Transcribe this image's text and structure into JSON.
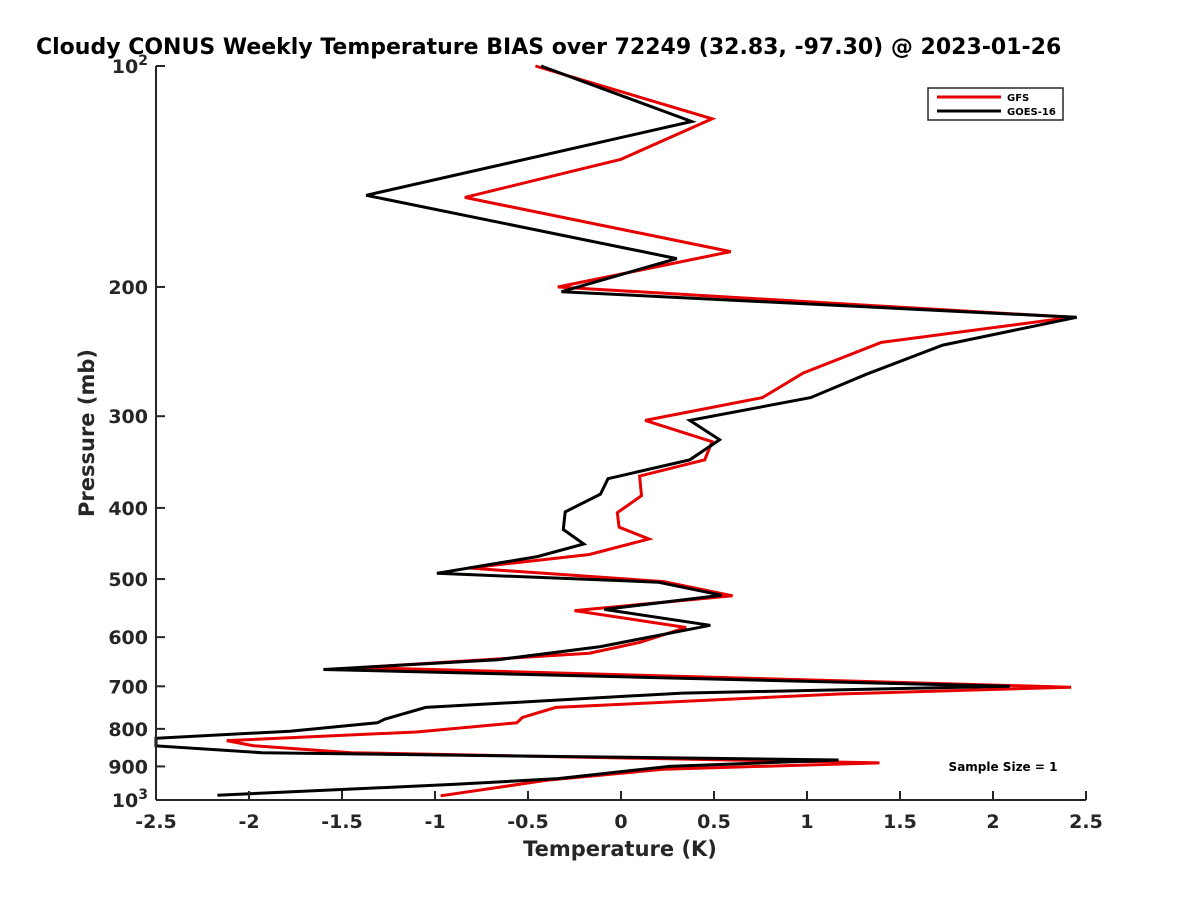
{
  "chart_data": {
    "type": "line",
    "title": "Cloudy CONUS Weekly Temperature BIAS over 72249 (32.83, -97.30) @ 2023-01-26",
    "xlabel": "Temperature (K)",
    "ylabel": "Pressure (mb)",
    "xlim": [
      -2.5,
      2.5
    ],
    "ylim": [
      100,
      1000
    ],
    "y_scale": "log",
    "y_reversed": true,
    "grid": false,
    "legend_position": "top-right",
    "x_ticks": [
      "-2.5",
      "-2",
      "-1.5",
      "-1",
      "-0.5",
      "0",
      "0.5",
      "1",
      "1.5",
      "2",
      "2.5"
    ],
    "x_tick_values": [
      -2.5,
      -2,
      -1.5,
      -1,
      -0.5,
      0,
      0.5,
      1,
      1.5,
      2,
      2.5
    ],
    "y_ticks": [
      {
        "value": 100,
        "base": "10",
        "exp": "2"
      },
      {
        "value": 200,
        "label": "200"
      },
      {
        "value": 300,
        "label": "300"
      },
      {
        "value": 400,
        "label": "400"
      },
      {
        "value": 500,
        "label": "500"
      },
      {
        "value": 600,
        "label": "600"
      },
      {
        "value": 700,
        "label": "700"
      },
      {
        "value": 800,
        "label": "800"
      },
      {
        "value": 900,
        "label": "900"
      },
      {
        "value": 1000,
        "base": "10",
        "exp": "3"
      }
    ],
    "annotation": "Sample Size = 1",
    "series": [
      {
        "name": "GFS",
        "color": "#e60000",
        "x": [
          -0.46,
          0.49,
          0.0,
          -0.84,
          0.59,
          -0.34,
          2.42,
          1.4,
          0.98,
          0.76,
          0.13,
          0.49,
          0.45,
          0.1,
          0.11,
          -0.02,
          -0.01,
          0.15,
          -0.17,
          -0.82,
          0.23,
          0.6,
          -0.25,
          0.35,
          0.1,
          -0.17,
          -1.4,
          2.42,
          1.17,
          -0.35,
          -0.53,
          -0.56,
          -1.1,
          -2.12,
          -1.98,
          -1.45,
          1.39,
          0.23,
          -0.4,
          -0.97
        ],
        "y": [
          100,
          118,
          134,
          151,
          179,
          200,
          220,
          238,
          262,
          283,
          304,
          325,
          344,
          362,
          385,
          406,
          425,
          441,
          463,
          483,
          504,
          527,
          552,
          582,
          610,
          631,
          660,
          702,
          717,
          748,
          772,
          785,
          808,
          830,
          843,
          862,
          890,
          908,
          940,
          987
        ]
      },
      {
        "name": "GOES-16",
        "color": "#000000",
        "x": [
          -0.43,
          0.38,
          -1.37,
          0.3,
          -0.32,
          2.45,
          1.73,
          1.32,
          1.02,
          0.37,
          0.53,
          0.37,
          -0.07,
          -0.11,
          -0.3,
          -0.31,
          -0.2,
          -0.45,
          -0.99,
          0.2,
          0.54,
          -0.09,
          0.48,
          -0.11,
          -0.66,
          -1.6,
          2.09,
          0.33,
          -1.05,
          -1.27,
          -1.31,
          -1.78,
          -2.5,
          -2.5,
          -1.93,
          1.17,
          0.26,
          -0.34,
          -0.89,
          -2.17
        ],
        "y": [
          100,
          119,
          150,
          183,
          203,
          220,
          240,
          263,
          283,
          304,
          323,
          344,
          365,
          383,
          405,
          428,
          448,
          466,
          491,
          505,
          526,
          550,
          578,
          618,
          644,
          664,
          700,
          715,
          748,
          776,
          785,
          806,
          824,
          844,
          862,
          882,
          900,
          935,
          952,
          985
        ]
      }
    ]
  }
}
